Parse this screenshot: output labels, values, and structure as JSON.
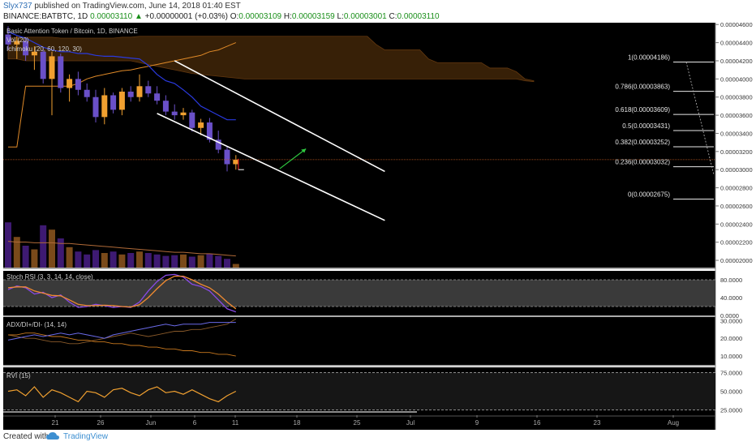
{
  "header": {
    "user": "Slyx737",
    "published": "published on TradingView.com, June 14, 2018 01:40 EST",
    "symbol_prefix": "BINANCE:BATBTC, 1D",
    "price": "0.00003110",
    "change_arrow": "▲",
    "change": "+0.00000001 (+0.03%)",
    "o_label": "O:",
    "o": "0.00003109",
    "h_label": "H:",
    "h": "0.00003159",
    "l_label": "L:",
    "l": "0.00003001",
    "c_label": "C:",
    "c": "0.00003110"
  },
  "footer": {
    "created_with": "Created with",
    "brand": "TradingView"
  },
  "colors": {
    "background": "#000000",
    "bull": "#f0a030",
    "bear": "#6a50c8",
    "cloud": "#3a2208",
    "conversion": "#2a3ae0",
    "base": "#e08a28",
    "channel": "#ffffff",
    "stoch_k": "#8a4ae8",
    "stoch_d": "#f08a30",
    "adx_plus": "#6a6ae8",
    "adx_minus": "#c8781e",
    "rvi": "#f0a030"
  },
  "chart_data": [
    {
      "type": "candlestick",
      "title": "Basic Attention Token / Bitcoin, 1D, BINANCE",
      "indicators": [
        "Vol (20)",
        "Ichimoku (20, 60, 120, 30)"
      ],
      "x_ticks": [
        "21",
        "26",
        "Jun",
        "6",
        "11",
        "18",
        "25",
        "Jul",
        "9",
        "16",
        "23",
        "Aug"
      ],
      "y_ticks": [
        "0.00004600",
        "0.00004400",
        "0.00004200",
        "0.00004000",
        "0.00003800",
        "0.00003600",
        "0.00003400",
        "0.00003200",
        "0.00003000",
        "0.00002800",
        "0.00002600",
        "0.00002400",
        "0.00002200",
        "0.00002000"
      ],
      "ylim": [
        1.92e-05,
        4.62e-05
      ],
      "last_price": 3.11e-05,
      "candles": [
        {
          "o": 4.49e-05,
          "h": 4.58e-05,
          "l": 4.32e-05,
          "c": 4.38e-05
        },
        {
          "o": 4.38e-05,
          "h": 4.47e-05,
          "l": 4.22e-05,
          "c": 4.42e-05
        },
        {
          "o": 4.42e-05,
          "h": 4.46e-05,
          "l": 4.2e-05,
          "c": 4.26e-05
        },
        {
          "o": 4.26e-05,
          "h": 4.36e-05,
          "l": 4.1e-05,
          "c": 4.3e-05
        },
        {
          "o": 4.3e-05,
          "h": 4.35e-05,
          "l": 3.95e-05,
          "c": 4e-05
        },
        {
          "o": 4e-05,
          "h": 4.3e-05,
          "l": 3.6e-05,
          "c": 4.25e-05
        },
        {
          "o": 4.25e-05,
          "h": 4.28e-05,
          "l": 3.85e-05,
          "c": 3.9e-05
        },
        {
          "o": 3.9e-05,
          "h": 4.05e-05,
          "l": 3.75e-05,
          "c": 4e-05
        },
        {
          "o": 4e-05,
          "h": 4.08e-05,
          "l": 3.82e-05,
          "c": 3.88e-05
        },
        {
          "o": 3.88e-05,
          "h": 3.95e-05,
          "l": 3.75e-05,
          "c": 3.8e-05
        },
        {
          "o": 3.8e-05,
          "h": 3.88e-05,
          "l": 3.52e-05,
          "c": 3.58e-05
        },
        {
          "o": 3.58e-05,
          "h": 3.9e-05,
          "l": 3.5e-05,
          "c": 3.82e-05
        },
        {
          "o": 3.82e-05,
          "h": 3.85e-05,
          "l": 3.62e-05,
          "c": 3.66e-05
        },
        {
          "o": 3.66e-05,
          "h": 3.9e-05,
          "l": 3.6e-05,
          "c": 3.86e-05
        },
        {
          "o": 3.86e-05,
          "h": 3.92e-05,
          "l": 3.75e-05,
          "c": 3.8e-05
        },
        {
          "o": 3.8e-05,
          "h": 4.05e-05,
          "l": 3.75e-05,
          "c": 3.92e-05
        },
        {
          "o": 3.92e-05,
          "h": 3.98e-05,
          "l": 3.8e-05,
          "c": 3.84e-05
        },
        {
          "o": 3.84e-05,
          "h": 3.92e-05,
          "l": 3.72e-05,
          "c": 3.76e-05
        },
        {
          "o": 3.76e-05,
          "h": 3.82e-05,
          "l": 3.6e-05,
          "c": 3.64e-05
        },
        {
          "o": 3.64e-05,
          "h": 3.72e-05,
          "l": 3.55e-05,
          "c": 3.6e-05
        },
        {
          "o": 3.6e-05,
          "h": 3.68e-05,
          "l": 3.55e-05,
          "c": 3.63e-05
        },
        {
          "o": 3.63e-05,
          "h": 3.66e-05,
          "l": 3.42e-05,
          "c": 3.46e-05
        },
        {
          "o": 3.46e-05,
          "h": 3.56e-05,
          "l": 3.38e-05,
          "c": 3.52e-05
        },
        {
          "o": 3.52e-05,
          "h": 3.57e-05,
          "l": 3.3e-05,
          "c": 3.33e-05
        },
        {
          "o": 3.33e-05,
          "h": 3.43e-05,
          "l": 3.18e-05,
          "c": 3.22e-05
        },
        {
          "o": 3.22e-05,
          "h": 3.26e-05,
          "l": 2.98e-05,
          "c": 3.06e-05
        },
        {
          "o": 3.06e-05,
          "h": 3.16e-05,
          "l": 3e-05,
          "c": 3.11e-05
        }
      ],
      "ichimoku": {
        "conversion": [
          4.52e-05,
          4.48e-05,
          4.45e-05,
          4.4e-05,
          4.35e-05,
          4.32e-05,
          4.3e-05,
          4.3e-05,
          4.28e-05,
          4.28e-05,
          4.26e-05,
          4.25e-05,
          4.25e-05,
          4.24e-05,
          4.23e-05,
          4.22e-05,
          4.15e-05,
          4.05e-05,
          3.98e-05,
          3.95e-05,
          3.88e-05,
          3.8e-05,
          3.7e-05,
          3.65e-05,
          3.6e-05,
          3.55e-05,
          3.55e-05
        ],
        "base": [
          3.25e-05,
          3.25e-05,
          3.92e-05,
          3.92e-05,
          3.92e-05,
          3.92e-05,
          3.92e-05,
          3.92e-05,
          3.95e-05,
          4e-05,
          4.03e-05,
          4.05e-05,
          4.07e-05,
          4.09e-05,
          4.1e-05,
          4.12e-05,
          4.14e-05,
          4.16e-05,
          4.18e-05,
          4.2e-05,
          4.22e-05,
          4.24e-05,
          4.26e-05,
          4.3e-05,
          4.32e-05,
          4.36e-05,
          4.4e-05
        ],
        "cloud_top": [
          4.45e-05,
          4.46e-05,
          4.46e-05,
          4.46e-05,
          4.46e-05,
          4.46e-05,
          4.45e-05,
          4.45e-05,
          4.45e-05,
          4.45e-05,
          4.45e-05,
          4.45e-05,
          4.45e-05,
          4.46e-05,
          4.46e-05,
          4.47e-05,
          4.47e-05,
          4.47e-05,
          4.47e-05,
          4.47e-05,
          4.47e-05,
          4.47e-05,
          4.47e-05,
          4.47e-05,
          4.47e-05,
          4.47e-05,
          4.47e-05,
          4.47e-05,
          4.47e-05,
          4.47e-05,
          4.47e-05,
          4.47e-05,
          4.47e-05,
          4.47e-05,
          4.47e-05,
          4.47e-05,
          4.47e-05,
          4.47e-05,
          4.47e-05,
          4.47e-05,
          4.47e-05,
          4.47e-05,
          4.38e-05,
          4.32e-05,
          4.32e-05,
          4.32e-05,
          4.32e-05,
          4.32e-05,
          4.22e-05,
          4.18e-05,
          4.18e-05,
          4.18e-05,
          4.18e-05,
          4.18e-05,
          4.18e-05,
          4.12e-05,
          4.12e-05,
          4.12e-05,
          4.08e-05,
          4e-05,
          3.98e-05
        ],
        "cloud_bottom": [
          4.22e-05,
          4.22e-05,
          4.2e-05,
          4.2e-05,
          4.2e-05,
          4.2e-05,
          4.2e-05,
          4.2e-05,
          4.2e-05,
          4.2e-05,
          4.2e-05,
          4.2e-05,
          4.2e-05,
          4.2e-05,
          4.2e-05,
          4.18e-05,
          4.16e-05,
          4.14e-05,
          4.12e-05,
          4.1e-05,
          4.08e-05,
          4.06e-05,
          4.05e-05,
          4.04e-05,
          4.03e-05,
          4.02e-05,
          4.01e-05,
          4e-05,
          4e-05,
          4e-05,
          4e-05,
          4e-05,
          4e-05,
          4e-05,
          4e-05,
          4e-05,
          4e-05,
          4e-05,
          4e-05,
          4e-05,
          4e-05,
          4e-05,
          4e-05,
          4e-05,
          4e-05,
          4e-05,
          4e-05,
          4e-05,
          4e-05,
          4e-05,
          4e-05,
          4e-05,
          4e-05,
          4e-05,
          4e-05,
          4e-05,
          4e-05,
          4e-05,
          4e-05,
          3.98e-05,
          3.97e-05
        ]
      },
      "volume": [
        0.62,
        0.42,
        0.3,
        0.25,
        0.58,
        0.52,
        0.4,
        0.28,
        0.22,
        0.18,
        0.24,
        0.2,
        0.22,
        0.18,
        0.2,
        0.22,
        0.2,
        0.18,
        0.16,
        0.17,
        0.18,
        0.15,
        0.17,
        0.19,
        0.16,
        0.12,
        0.05
      ],
      "volume_ma": [
        0.36,
        0.35,
        0.35,
        0.34,
        0.34,
        0.34,
        0.33,
        0.33,
        0.32,
        0.31,
        0.3,
        0.29,
        0.28,
        0.27,
        0.26,
        0.25,
        0.24,
        0.23,
        0.22,
        0.21,
        0.21,
        0.2,
        0.19,
        0.19,
        0.18,
        0.17,
        0.16
      ],
      "channel": {
        "upper": [
          [
            4.2e-05,
            19
          ],
          [
            2.98e-05,
            43
          ]
        ],
        "lower": [
          [
            3.62e-05,
            17
          ],
          [
            2.44e-05,
            43
          ]
        ]
      },
      "green_arrow": [
        [
          3.01e-05,
          31
        ],
        [
          3.23e-05,
          34
        ]
      ],
      "fibonacci": [
        {
          "level": "1",
          "price": 4.186e-05,
          "label": "1(0.00004186)"
        },
        {
          "level": "0.786",
          "price": 3.863e-05,
          "label": "0.786(0.00003863)"
        },
        {
          "level": "0.618",
          "price": 3.609e-05,
          "label": "0.618(0.00003609)"
        },
        {
          "level": "0.5",
          "price": 3.431e-05,
          "label": "0.5(0.00003431)"
        },
        {
          "level": "0.382",
          "price": 3.252e-05,
          "label": "0.382(0.00003252)"
        },
        {
          "level": "0.236",
          "price": 3.032e-05,
          "label": "0.236(0.00003032)"
        },
        {
          "level": "0",
          "price": 2.675e-05,
          "label": "0(0.00002675)"
        }
      ]
    },
    {
      "type": "line",
      "title": "Stoch RSI (3, 3, 14, 14, close)",
      "y_ticks": [
        "80.0000",
        "40.0000",
        "0.0000"
      ],
      "ylim": [
        0,
        100
      ],
      "band": [
        20,
        80
      ],
      "series": [
        {
          "values": [
            58,
            66,
            62,
            48,
            52,
            40,
            46,
            30,
            18,
            20,
            25,
            22,
            18,
            20,
            18,
            30,
            55,
            76,
            90,
            92,
            86,
            70,
            65,
            55,
            35,
            15,
            8
          ]
        },
        {
          "values": [
            62,
            64,
            64,
            55,
            50,
            45,
            44,
            35,
            25,
            22,
            22,
            23,
            22,
            20,
            19,
            24,
            40,
            60,
            78,
            88,
            88,
            80,
            70,
            62,
            48,
            30,
            15
          ]
        }
      ]
    },
    {
      "type": "line",
      "title": "ADX/DI+/DI- (14, 14)",
      "y_ticks": [
        "30.0000",
        "20.0000",
        "10.0000"
      ],
      "ylim": [
        5,
        32
      ],
      "series": [
        {
          "values": [
            22,
            21,
            20,
            20,
            19,
            18,
            18,
            17,
            17,
            18,
            19,
            20,
            21,
            22,
            23,
            22,
            21,
            22,
            23,
            24,
            24,
            25,
            25,
            26,
            27,
            28,
            31
          ]
        },
        {
          "values": [
            22,
            22,
            23,
            23,
            22,
            21,
            21,
            20,
            19,
            19,
            18,
            18,
            17,
            17,
            16,
            16,
            15,
            15,
            14,
            14,
            13,
            13,
            12,
            12,
            11,
            11,
            10
          ]
        },
        {
          "values": [
            19,
            20,
            21,
            22,
            21,
            22,
            23,
            22,
            23,
            22,
            21,
            20,
            22,
            23,
            24,
            25,
            26,
            27,
            28,
            27,
            28,
            28,
            28,
            29,
            29,
            29,
            29
          ]
        }
      ]
    },
    {
      "type": "line",
      "title": "RVI (15)",
      "y_ticks": [
        "75.0000",
        "50.0000",
        "25.0000"
      ],
      "ylim": [
        18,
        82
      ],
      "band": [
        25,
        75
      ],
      "series": [
        {
          "values": [
            50,
            52,
            44,
            56,
            42,
            52,
            48,
            42,
            36,
            50,
            48,
            42,
            52,
            54,
            48,
            44,
            52,
            56,
            48,
            50,
            46,
            52,
            46,
            40,
            36,
            44,
            50
          ]
        }
      ]
    }
  ]
}
